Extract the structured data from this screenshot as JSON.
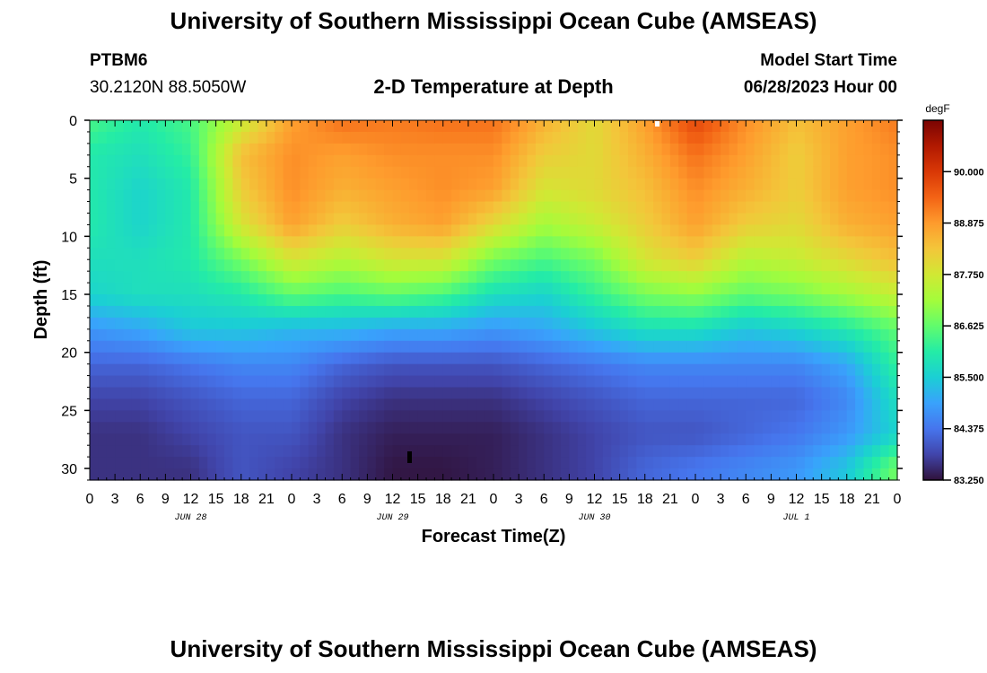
{
  "header": {
    "title": "University of Southern Mississippi Ocean Cube (AMSEAS)",
    "station_id": "PTBM6",
    "coordinates": "30.2120N  88.5050W",
    "chart_title": "2-D Temperature at Depth",
    "model_start_label": "Model Start Time",
    "model_start_value": "06/28/2023 Hour 00"
  },
  "footer": {
    "title": "University of Southern Mississippi Ocean Cube (AMSEAS)"
  },
  "chart_data": {
    "type": "heatmap",
    "title": "2-D Temperature at Depth",
    "xlabel": "Forecast Time(Z)",
    "ylabel": "Depth (ft)",
    "x_hours_range": [
      0,
      96
    ],
    "ylim": [
      0,
      31
    ],
    "x_tick_labels": [
      "0",
      "3",
      "6",
      "9",
      "12",
      "15",
      "18",
      "21",
      "0",
      "3",
      "6",
      "9",
      "12",
      "15",
      "18",
      "21",
      "0",
      "3",
      "6",
      "9",
      "12",
      "15",
      "18",
      "21",
      "0",
      "3",
      "6",
      "9",
      "12",
      "15",
      "18",
      "21",
      "0"
    ],
    "date_labels": [
      {
        "hour": 12,
        "label": "JUN 28"
      },
      {
        "hour": 36,
        "label": "JUN 29"
      },
      {
        "hour": 60,
        "label": "JUN 30"
      },
      {
        "hour": 84,
        "label": "JUL 1"
      }
    ],
    "y_ticks": [
      0,
      5,
      10,
      15,
      20,
      25,
      30
    ],
    "y_tick_labels": [
      "0",
      "5",
      "10",
      "15",
      "20",
      "25",
      "30"
    ],
    "colorbar": {
      "units": "degF",
      "min": 83.25,
      "max": 91.125,
      "ticks": [
        83.25,
        84.375,
        85.5,
        86.625,
        87.75,
        88.875,
        90.0
      ],
      "tick_labels": [
        "83.250",
        "84.375",
        "85.500",
        "86.625",
        "87.750",
        "88.875",
        "90.000"
      ],
      "colors": [
        "#30123b",
        "#4145ab",
        "#4675ed",
        "#39a2fc",
        "#1bcfd4",
        "#24eca6",
        "#61fc6c",
        "#a4fc3b",
        "#d1e834",
        "#f3c63a",
        "#fe9b2d",
        "#f36315",
        "#d93806",
        "#b11901",
        "#7a0402"
      ]
    },
    "depths_ft": [
      0,
      3,
      6,
      9,
      12,
      15,
      18,
      21,
      24,
      27,
      30
    ],
    "time_keys_hours": [
      0,
      6,
      12,
      18,
      24,
      30,
      36,
      42,
      48,
      54,
      60,
      66,
      72,
      78,
      84,
      90,
      96
    ],
    "temperature_degF": [
      [
        86.4,
        86.0,
        86.4,
        87.6,
        88.8,
        89.3,
        89.2,
        89.3,
        89.3,
        88.6,
        88.0,
        88.8,
        89.8,
        89.0,
        88.4,
        88.8,
        89.2
      ],
      [
        86.0,
        85.8,
        86.2,
        88.4,
        89.0,
        88.8,
        89.0,
        89.0,
        89.0,
        88.2,
        88.0,
        88.6,
        89.3,
        88.8,
        88.2,
        88.8,
        89.0
      ],
      [
        86.0,
        85.6,
        86.0,
        88.2,
        89.0,
        88.6,
        88.8,
        89.0,
        88.8,
        87.8,
        88.0,
        88.4,
        89.0,
        88.6,
        88.2,
        88.8,
        89.0
      ],
      [
        86.0,
        85.6,
        86.0,
        87.8,
        88.8,
        88.2,
        88.6,
        88.8,
        88.0,
        87.2,
        87.6,
        88.2,
        88.8,
        88.2,
        88.0,
        88.6,
        88.8
      ],
      [
        85.8,
        85.8,
        86.0,
        86.8,
        87.8,
        87.4,
        87.8,
        87.8,
        86.8,
        86.4,
        86.8,
        87.8,
        88.2,
        87.4,
        87.6,
        88.0,
        88.4
      ],
      [
        85.6,
        85.8,
        85.8,
        86.0,
        86.6,
        86.4,
        86.6,
        86.4,
        85.8,
        85.6,
        86.2,
        86.8,
        87.0,
        86.6,
        86.8,
        87.2,
        87.6
      ],
      [
        84.8,
        85.0,
        85.4,
        85.4,
        85.2,
        85.2,
        85.0,
        85.0,
        84.8,
        85.0,
        85.4,
        85.8,
        85.8,
        85.4,
        85.6,
        86.0,
        86.6
      ],
      [
        84.2,
        84.2,
        84.4,
        84.6,
        84.6,
        84.2,
        84.0,
        84.0,
        84.0,
        84.2,
        84.4,
        84.6,
        84.6,
        84.6,
        84.6,
        85.0,
        86.2
      ],
      [
        83.8,
        83.8,
        84.0,
        84.2,
        84.2,
        83.8,
        83.6,
        83.6,
        83.6,
        83.8,
        84.0,
        84.2,
        84.2,
        84.2,
        84.2,
        84.6,
        85.8
      ],
      [
        83.6,
        83.6,
        83.8,
        84.0,
        84.0,
        83.6,
        83.4,
        83.4,
        83.4,
        83.6,
        83.8,
        84.0,
        84.0,
        84.2,
        84.4,
        84.8,
        85.6
      ],
      [
        83.6,
        83.6,
        83.6,
        84.0,
        83.8,
        83.6,
        83.3,
        83.3,
        83.4,
        83.6,
        83.8,
        84.2,
        84.4,
        84.6,
        84.8,
        85.4,
        86.8
      ]
    ]
  }
}
